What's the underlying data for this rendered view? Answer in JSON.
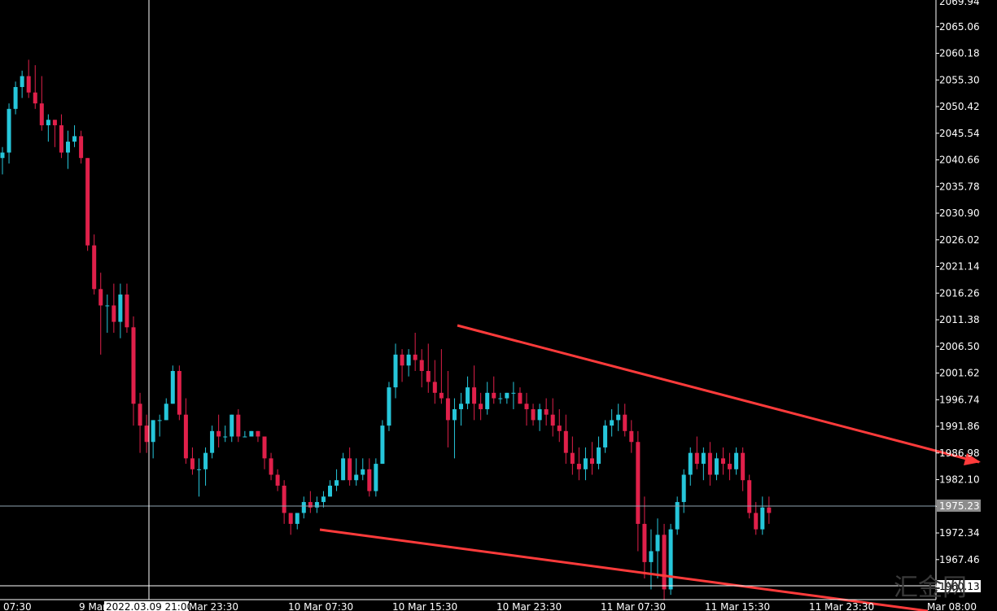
{
  "chart_data": {
    "type": "candlestick",
    "colors": {
      "background": "#000000",
      "bull": "#26c6da",
      "bear": "#e0204a",
      "trendline": "#ff3b3b",
      "crosshair": "#ffffff",
      "bidline": "#8fa3b0"
    },
    "y_ticks": [
      "2069.94",
      "2065.06",
      "2060.18",
      "2055.30",
      "2050.42",
      "2045.54",
      "2040.66",
      "2035.78",
      "2030.90",
      "2026.02",
      "2021.14",
      "2016.26",
      "2011.38",
      "2006.50",
      "2001.62",
      "1996.74",
      "1991.86",
      "1986.98",
      "1982.10",
      "1977.22",
      "1972.34",
      "1967.46",
      "1962.58"
    ],
    "y_tick_values": [
      2069.94,
      2065.06,
      2060.18,
      2055.3,
      2050.42,
      2045.54,
      2040.66,
      2035.78,
      2030.9,
      2026.02,
      2021.14,
      2016.26,
      2011.38,
      2006.5,
      2001.62,
      1996.74,
      1991.86,
      1986.98,
      1982.1,
      1977.22,
      1972.34,
      1967.46,
      1962.58
    ],
    "x_ticks": [
      "07:30",
      "9 Mar",
      "2022.03.09 21:00",
      "Mar 23:30",
      "10 Mar 07:30",
      "10 Mar 15:30",
      "10 Mar 23:30",
      "11 Mar 07:30",
      "11 Mar 15:30",
      "11 Mar 23:30",
      "Mar 08:00"
    ],
    "current_price": "1975.23",
    "crosshair_price": "1960.13",
    "crosshair_time": "2022.03.09 21:00",
    "watermark": "汇金网",
    "candles": [
      [
        2041,
        2043,
        2038,
        2042
      ],
      [
        2042,
        2051,
        2040,
        2050
      ],
      [
        2050,
        2055,
        2049,
        2054
      ],
      [
        2054,
        2057,
        2052,
        2056
      ],
      [
        2056,
        2059,
        2052,
        2053
      ],
      [
        2053,
        2058,
        2050,
        2051
      ],
      [
        2051,
        2056,
        2046,
        2047
      ],
      [
        2047,
        2049,
        2044,
        2048
      ],
      [
        2048,
        2048,
        2043,
        2047
      ],
      [
        2047,
        2049,
        2041,
        2042
      ],
      [
        2042,
        2046,
        2039,
        2044
      ],
      [
        2044,
        2047,
        2043,
        2045
      ],
      [
        2045,
        2046,
        2040,
        2041
      ],
      [
        2041,
        2041,
        2024,
        2025
      ],
      [
        2025,
        2027,
        2016,
        2017
      ],
      [
        2017,
        2020,
        2005,
        2014
      ],
      [
        2014,
        2016,
        2009,
        2014
      ],
      [
        2014,
        2018,
        2009,
        2011
      ],
      [
        2011,
        2018,
        2008,
        2016
      ],
      [
        2016,
        2018,
        2009,
        2010
      ],
      [
        2010,
        2012,
        1992,
        1996
      ],
      [
        1996,
        1998,
        1987,
        1992
      ],
      [
        1992,
        1994,
        1987,
        1989
      ],
      [
        1989,
        1993,
        1986,
        1993
      ],
      [
        1993,
        1994,
        1990,
        1993
      ],
      [
        1993,
        1997,
        1993,
        1996
      ],
      [
        1996,
        2003,
        1996,
        2002
      ],
      [
        2002,
        2003,
        1993,
        1994
      ],
      [
        1994,
        1997,
        1985,
        1986
      ],
      [
        1986,
        1988,
        1983,
        1984
      ],
      [
        1984,
        1986,
        1979,
        1984
      ],
      [
        1984,
        1988,
        1981,
        1987
      ],
      [
        1987,
        1992,
        1986,
        1991
      ],
      [
        1991,
        1994,
        1988,
        1990
      ],
      [
        1990,
        1992,
        1989,
        1990
      ],
      [
        1990,
        1994,
        1989,
        1994
      ],
      [
        1994,
        1995,
        1989,
        1990
      ],
      [
        1990,
        1991,
        1990,
        1990
      ],
      [
        1990,
        1991,
        1990,
        1991
      ],
      [
        1991,
        1991,
        1989,
        1990
      ],
      [
        1990,
        1990,
        1984,
        1986
      ],
      [
        1986,
        1987,
        1982,
        1983
      ],
      [
        1983,
        1984,
        1980,
        1981
      ],
      [
        1981,
        1982,
        1974,
        1976
      ],
      [
        1976,
        1976,
        1972,
        1974
      ],
      [
        1974,
        1976,
        1973,
        1976
      ],
      [
        1976,
        1979,
        1975,
        1978
      ],
      [
        1978,
        1980,
        1976,
        1977
      ],
      [
        1977,
        1979,
        1976,
        1978
      ],
      [
        1978,
        1980,
        1977,
        1979
      ],
      [
        1979,
        1982,
        1979,
        1981
      ],
      [
        1981,
        1984,
        1980,
        1982
      ],
      [
        1982,
        1987,
        1982,
        1986
      ],
      [
        1986,
        1988,
        1981,
        1982
      ],
      [
        1982,
        1986,
        1981,
        1983
      ],
      [
        1983,
        1986,
        1982,
        1984
      ],
      [
        1984,
        1986,
        1979,
        1980
      ],
      [
        1980,
        1986,
        1979,
        1985
      ],
      [
        1985,
        1993,
        1985,
        1992
      ],
      [
        1992,
        2000,
        1991,
        1999
      ],
      [
        1999,
        2007,
        1997,
        2005
      ],
      [
        2005,
        2006,
        2000,
        2003
      ],
      [
        2003,
        2006,
        2001,
        2005
      ],
      [
        2005,
        2009,
        2002,
        2004
      ],
      [
        2004,
        2006,
        1999,
        2002
      ],
      [
        2002,
        2007,
        1998,
        2000
      ],
      [
        2000,
        2004,
        1996,
        1998
      ],
      [
        1998,
        2006,
        1996,
        1997
      ],
      [
        1997,
        2002,
        1988,
        1993
      ],
      [
        1993,
        1997,
        1986,
        1995
      ],
      [
        1995,
        1998,
        1992,
        1996
      ],
      [
        1996,
        2001,
        1995,
        1999
      ],
      [
        1999,
        2003,
        1993,
        1996
      ],
      [
        1996,
        1998,
        1993,
        1995
      ],
      [
        1995,
        2000,
        1994,
        1998
      ],
      [
        1998,
        2001,
        1996,
        1997
      ],
      [
        1997,
        1998,
        1996,
        1997
      ],
      [
        1997,
        1998,
        1996,
        1998
      ],
      [
        1998,
        2000,
        1995,
        1998
      ],
      [
        1998,
        1999,
        1996,
        1996
      ],
      [
        1996,
        1998,
        1992,
        1995
      ],
      [
        1995,
        1996,
        1992,
        1993
      ],
      [
        1993,
        1996,
        1991,
        1995
      ],
      [
        1995,
        1997,
        1992,
        1994
      ],
      [
        1994,
        1997,
        1990,
        1992
      ],
      [
        1992,
        1995,
        1989,
        1991
      ],
      [
        1991,
        1994,
        1985,
        1987
      ],
      [
        1987,
        1990,
        1983,
        1985
      ],
      [
        1985,
        1988,
        1982,
        1984
      ],
      [
        1984,
        1988,
        1982,
        1986
      ],
      [
        1986,
        1989,
        1983,
        1985
      ],
      [
        1985,
        1990,
        1984,
        1988
      ],
      [
        1988,
        1993,
        1987,
        1992
      ],
      [
        1992,
        1995,
        1990,
        1993
      ],
      [
        1993,
        1996,
        1991,
        1994
      ],
      [
        1994,
        1996,
        1990,
        1991
      ],
      [
        1991,
        1993,
        1987,
        1989
      ],
      [
        1989,
        1991,
        1969,
        1974
      ],
      [
        1974,
        1979,
        1964,
        1967
      ],
      [
        1967,
        1973,
        1962,
        1969
      ],
      [
        1969,
        1975,
        1964,
        1972
      ],
      [
        1972,
        1974,
        1960,
        1962
      ],
      [
        1962,
        1974,
        1961,
        1973
      ],
      [
        1973,
        1979,
        1972,
        1978
      ],
      [
        1978,
        1984,
        1976,
        1983
      ],
      [
        1983,
        1988,
        1981,
        1987
      ],
      [
        1987,
        1990,
        1984,
        1985
      ],
      [
        1985,
        1988,
        1982,
        1987
      ],
      [
        1987,
        1989,
        1981,
        1983
      ],
      [
        1983,
        1987,
        1982,
        1986
      ],
      [
        1986,
        1988,
        1983,
        1985
      ],
      [
        1985,
        1987,
        1982,
        1984
      ],
      [
        1984,
        1988,
        1983,
        1987
      ],
      [
        1987,
        1988,
        1980,
        1982
      ],
      [
        1982,
        1983,
        1975,
        1976
      ],
      [
        1976,
        1978,
        1972,
        1973
      ],
      [
        1973,
        1979,
        1972,
        1977
      ],
      [
        1977,
        1979,
        1974,
        1976
      ]
    ]
  }
}
